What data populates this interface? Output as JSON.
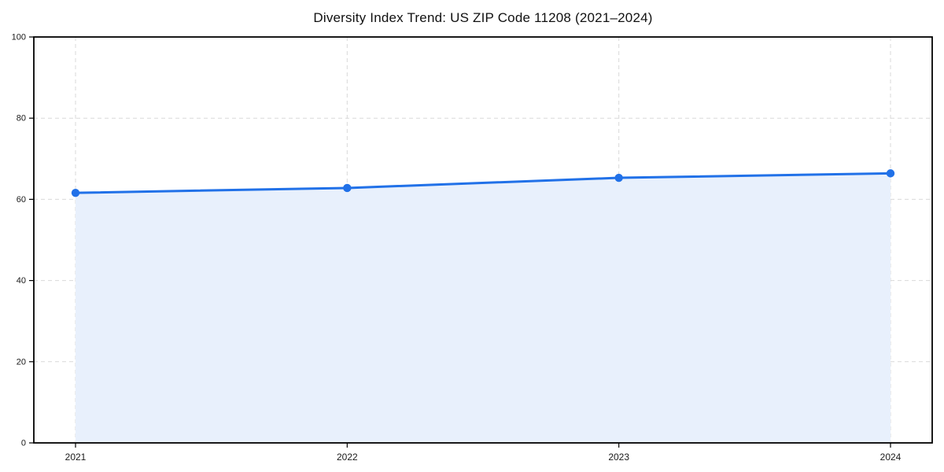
{
  "chart_data": {
    "type": "area",
    "title": "Diversity Index Trend: US ZIP Code 11208 (2021–2024)",
    "categories": [
      "2021",
      "2022",
      "2023",
      "2024"
    ],
    "series": [
      {
        "name": "Diversity Index",
        "values": [
          61.6,
          62.8,
          65.3,
          66.4
        ]
      }
    ],
    "xlabel": "",
    "ylabel": "",
    "ylim": [
      0,
      100
    ],
    "yticks": [
      0,
      20,
      40,
      60,
      80,
      100
    ],
    "grid": "dashed, horizontal at yticks and vertical at each year",
    "legend_position": "none",
    "line_color": "#2171e8",
    "marker_color": "#2171e8",
    "fill_color": "#e8f0fc",
    "frame_color": "#000000",
    "gridline_color": "#d9d9d9",
    "background_color": "#ffffff"
  }
}
